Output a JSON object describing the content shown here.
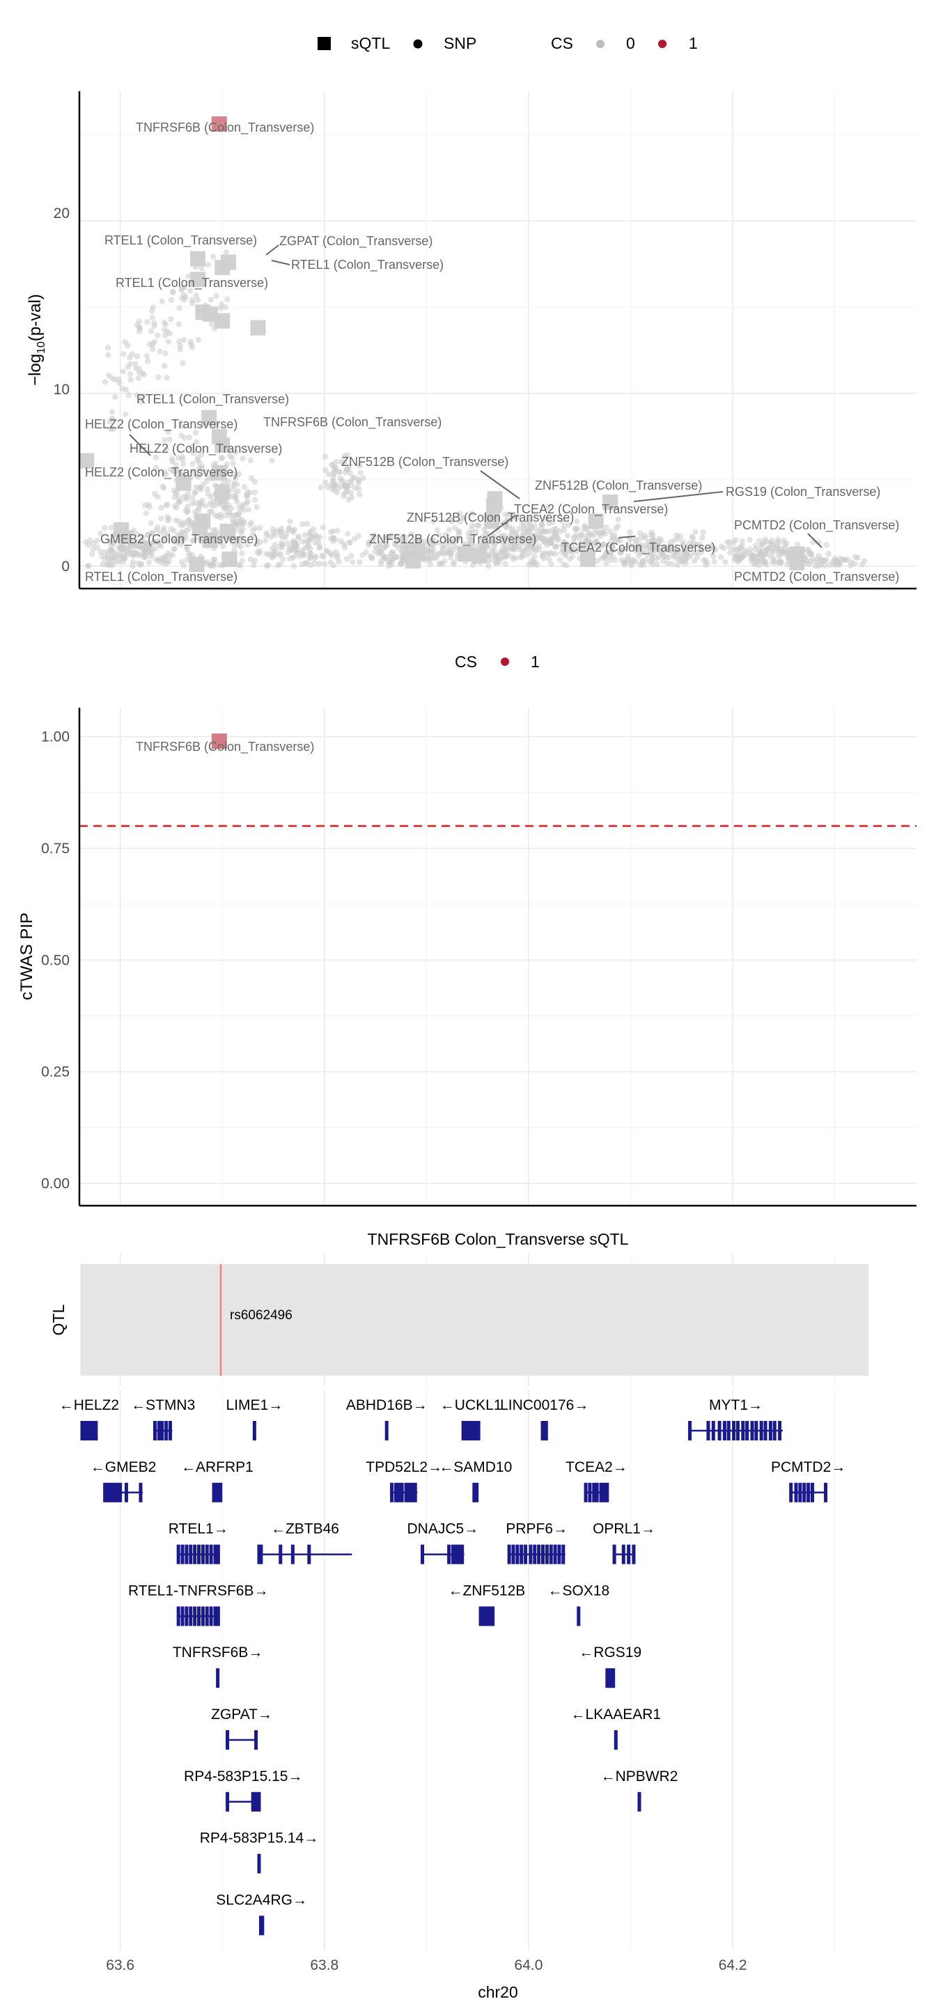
{
  "colors": {
    "sqtl_point": "#cfcfcf",
    "snp_point": "#cccccc",
    "cs0": "#bdbdbd",
    "cs1": "#b2182b",
    "threshold_line": "#e31a1c",
    "gene": "#1a1a8c",
    "qtl_line": "#f08080",
    "qtl_band": "#e5e5e5",
    "label_text": "#666666"
  },
  "legend1": {
    "shape_items": [
      "sQTL",
      "SNP"
    ],
    "cs_title": "CS",
    "cs_items": [
      "0",
      "1"
    ]
  },
  "legend2": {
    "cs_title": "CS",
    "cs_items": [
      "1"
    ]
  },
  "axis": {
    "x_label": "chr20",
    "x_ticks": [
      "63.6",
      "63.8",
      "64.0",
      "64.2"
    ]
  },
  "chart_data": [
    {
      "type": "scatter",
      "panel": "association",
      "ylabel": "−log10(p-val)",
      "xlim": [
        63.56,
        64.38
      ],
      "ylim": [
        -1.3,
        27.5
      ],
      "y_ticks": [
        "0",
        "10",
        "20"
      ],
      "grid": true,
      "legend_position": "top",
      "sqtl_points": [
        {
          "x": 63.697,
          "y": 25.6,
          "cs": "1",
          "label": "TNFRSF6B (Colon_Transverse)"
        },
        {
          "x": 63.676,
          "y": 17.8,
          "cs": "0",
          "label": "RTEL1 (Colon_Transverse)"
        },
        {
          "x": 63.706,
          "y": 17.6,
          "cs": "0",
          "label": "ZGPAT (Colon_Transverse)"
        },
        {
          "x": 63.7,
          "y": 17.3,
          "cs": "0",
          "label": "RTEL1 (Colon_Transverse)"
        },
        {
          "x": 63.676,
          "y": 16.6,
          "cs": "0",
          "label": "RTEL1 (Colon_Transverse)"
        },
        {
          "x": 63.681,
          "y": 14.7,
          "cs": "0",
          "label": ""
        },
        {
          "x": 63.688,
          "y": 14.6,
          "cs": "0",
          "label": ""
        },
        {
          "x": 63.7,
          "y": 14.2,
          "cs": "0",
          "label": ""
        },
        {
          "x": 63.735,
          "y": 13.8,
          "cs": "0",
          "label": ""
        },
        {
          "x": 63.687,
          "y": 8.6,
          "cs": "0",
          "label": "RTEL1 (Colon_Transverse)"
        },
        {
          "x": 63.697,
          "y": 7.5,
          "cs": "0",
          "label": "TNFRSF6B (Colon_Transverse)"
        },
        {
          "x": 63.7,
          "y": 7.0,
          "cs": "0",
          "label": "HELZ2 (Colon_Transverse)"
        },
        {
          "x": 63.567,
          "y": 6.1,
          "cs": "0",
          "label": "HELZ2 (Colon_Transverse)"
        },
        {
          "x": 63.697,
          "y": 5.4,
          "cs": "0",
          "label": "HELZ2 (Colon_Transverse)"
        },
        {
          "x": 63.662,
          "y": 4.8,
          "cs": "0",
          "label": ""
        },
        {
          "x": 63.7,
          "y": 4.3,
          "cs": "0",
          "label": ""
        },
        {
          "x": 63.967,
          "y": 3.9,
          "cs": "0",
          "label": "ZNF512B (Colon_Transverse)"
        },
        {
          "x": 63.966,
          "y": 3.5,
          "cs": "0",
          "label": "ZNF512B (Colon_Transverse)"
        },
        {
          "x": 64.08,
          "y": 3.7,
          "cs": "0",
          "label": "RGS19 (Colon_Transverse)"
        },
        {
          "x": 63.964,
          "y": 2.6,
          "cs": "0",
          "label": "ZNF512B (Colon_Transverse)"
        },
        {
          "x": 64.066,
          "y": 2.6,
          "cs": "0",
          "label": "TCEA2 (Colon_Transverse)"
        },
        {
          "x": 63.681,
          "y": 2.6,
          "cs": "0",
          "label": "GMEB2 (Colon_Transverse)"
        },
        {
          "x": 63.678,
          "y": 2.2,
          "cs": "0",
          "label": ""
        },
        {
          "x": 63.601,
          "y": 2.1,
          "cs": "0",
          "label": ""
        },
        {
          "x": 63.705,
          "y": 2.0,
          "cs": "0",
          "label": ""
        },
        {
          "x": 63.688,
          "y": 1.5,
          "cs": "0",
          "label": ""
        },
        {
          "x": 63.891,
          "y": 0.9,
          "cs": "0",
          "label": "ZNF512B (Colon_Transverse)"
        },
        {
          "x": 63.938,
          "y": 0.7,
          "cs": "0",
          "label": ""
        },
        {
          "x": 63.952,
          "y": 0.6,
          "cs": "0",
          "label": ""
        },
        {
          "x": 64.058,
          "y": 0.4,
          "cs": "0",
          "label": "TCEA2 (Colon_Transverse)"
        },
        {
          "x": 63.887,
          "y": 0.3,
          "cs": "0",
          "label": ""
        },
        {
          "x": 64.263,
          "y": 0.7,
          "cs": "0",
          "label": "PCMTD2 (Colon_Transverse)"
        },
        {
          "x": 64.263,
          "y": 0.2,
          "cs": "0",
          "label": "PCMTD2 (Colon_Transverse)"
        },
        {
          "x": 63.707,
          "y": 0.4,
          "cs": "0",
          "label": ""
        },
        {
          "x": 63.675,
          "y": 0.1,
          "cs": "0",
          "label": "RTEL1 (Colon_Transverse)"
        }
      ]
    },
    {
      "type": "scatter",
      "panel": "pip",
      "ylabel": "cTWAS PIP",
      "xlim": [
        63.56,
        64.38
      ],
      "ylim": [
        -0.05,
        1.065
      ],
      "y_ticks": [
        "0.00",
        "0.25",
        "0.50",
        "0.75",
        "1.00"
      ],
      "threshold": 0.8,
      "grid": true,
      "legend_position": "top",
      "points": [
        {
          "x": 63.697,
          "y": 0.99,
          "cs": "1",
          "label": "TNFRSF6B (Colon_Transverse)"
        }
      ]
    },
    {
      "type": "track",
      "panel": "qtl",
      "title": "TNFRSF6B Colon_Transverse sQTL",
      "ylabel": "QTL",
      "range": [
        63.561,
        64.333
      ],
      "snp": {
        "x": 63.6985,
        "label": "rs6062496"
      }
    },
    {
      "type": "gene_track",
      "panel": "genes",
      "genes": [
        {
          "name": "←HELZ2",
          "row": 0,
          "start": 63.561,
          "end": 63.578,
          "exons": []
        },
        {
          "name": "←STMN3",
          "row": 0,
          "start": 63.633,
          "end": 63.651,
          "exons": [
            63.634,
            63.638,
            63.641,
            63.645,
            63.649
          ]
        },
        {
          "name": "LIME1→",
          "row": 0,
          "start": 63.73,
          "end": 63.733,
          "exons": []
        },
        {
          "name": "ABHD16B→",
          "row": 0,
          "start": 63.86,
          "end": 63.862,
          "exons": []
        },
        {
          "name": "←UCKL1",
          "row": 0,
          "start": 63.935,
          "end": 63.952,
          "exons": [
            63.936,
            63.939,
            63.942,
            63.945,
            63.948,
            63.951
          ]
        },
        {
          "name": "LINC00176→",
          "row": 0,
          "start": 64.012,
          "end": 64.019,
          "exons": []
        },
        {
          "name": "MYT1→",
          "row": 0,
          "start": 64.157,
          "end": 64.249,
          "exons": [
            64.158,
            64.176,
            64.181,
            64.187,
            64.192,
            64.196,
            64.201,
            64.205,
            64.21,
            64.214,
            64.219,
            64.223,
            64.228,
            64.232,
            64.237,
            64.241,
            64.246
          ]
        },
        {
          "name": "←GMEB2",
          "row": 1,
          "start": 63.584,
          "end": 63.622,
          "exons": [
            63.585,
            63.588,
            63.591,
            63.594,
            63.597,
            63.6,
            63.606,
            63.62
          ]
        },
        {
          "name": "←ARFRP1",
          "row": 1,
          "start": 63.69,
          "end": 63.7,
          "exons": []
        },
        {
          "name": "TPD52L2→",
          "row": 1,
          "start": 63.865,
          "end": 63.891,
          "exons": [
            63.866,
            63.87,
            63.873,
            63.876,
            63.88,
            63.883,
            63.886,
            63.889
          ]
        },
        {
          "name": "←SAMD10",
          "row": 1,
          "start": 63.945,
          "end": 63.951,
          "exons": []
        },
        {
          "name": "TCEA2→",
          "row": 1,
          "start": 64.055,
          "end": 64.078,
          "exons": [
            64.056,
            64.06,
            64.064,
            64.067,
            64.071,
            64.074,
            64.077
          ]
        },
        {
          "name": "PCMTD2→",
          "row": 1,
          "start": 64.256,
          "end": 64.292,
          "exons": [
            64.257,
            64.262,
            64.266,
            64.27,
            64.274,
            64.278,
            64.291
          ]
        },
        {
          "name": "RTEL1→",
          "row": 2,
          "start": 63.656,
          "end": 63.697,
          "exons": [
            63.657,
            63.661,
            63.665,
            63.669,
            63.673,
            63.677,
            63.681,
            63.685,
            63.689,
            63.693,
            63.696
          ]
        },
        {
          "name": "←ZBTB46",
          "row": 2,
          "start": 63.735,
          "end": 63.827,
          "exons": [
            63.736,
            63.738,
            63.757,
            63.769,
            63.785
          ]
        },
        {
          "name": "DNAJC5→",
          "row": 2,
          "start": 63.895,
          "end": 63.937,
          "exons": [
            63.896,
            63.922,
            63.926,
            63.929,
            63.932,
            63.935
          ]
        },
        {
          "name": "PRPF6→",
          "row": 2,
          "start": 63.98,
          "end": 64.036,
          "exons": [
            63.981,
            63.985,
            63.989,
            63.993,
            63.997,
            64.002,
            64.006,
            64.01,
            64.014,
            64.018,
            64.022,
            64.026,
            64.03,
            64.034
          ]
        },
        {
          "name": "OPRL1→",
          "row": 2,
          "start": 64.083,
          "end": 64.104,
          "exons": [
            64.084,
            64.093,
            64.098,
            64.103
          ]
        },
        {
          "name": "RTEL1-TNFRSF6B→",
          "row": 3,
          "start": 63.656,
          "end": 63.697,
          "exons": [
            63.657,
            63.661,
            63.665,
            63.669,
            63.673,
            63.677,
            63.681,
            63.685,
            63.689,
            63.693,
            63.696
          ]
        },
        {
          "name": "←ZNF512B",
          "row": 3,
          "start": 63.952,
          "end": 63.966,
          "exons": [
            63.953,
            63.956,
            63.959,
            63.962,
            63.965
          ]
        },
        {
          "name": "←SOX18",
          "row": 3,
          "start": 64.048,
          "end": 64.05,
          "exons": []
        },
        {
          "name": "TNFRSF6B→",
          "row": 4,
          "start": 63.694,
          "end": 63.697,
          "exons": []
        },
        {
          "name": "←RGS19",
          "row": 4,
          "start": 64.076,
          "end": 64.084,
          "exons": [
            64.077,
            64.079,
            64.081,
            64.083
          ]
        },
        {
          "name": "ZGPAT→",
          "row": 5,
          "start": 63.704,
          "end": 63.734,
          "exons": [
            63.705,
            63.733
          ]
        },
        {
          "name": "←LKAAEAR1",
          "row": 5,
          "start": 64.084,
          "end": 64.087,
          "exons": []
        },
        {
          "name": "RP4-583P15.15→",
          "row": 6,
          "start": 63.704,
          "end": 63.737,
          "exons": [
            63.705,
            63.73,
            63.733,
            63.736
          ]
        },
        {
          "name": "←NPBWR2",
          "row": 6,
          "start": 64.107,
          "end": 64.11,
          "exons": []
        },
        {
          "name": "RP4-583P15.14→",
          "row": 7,
          "start": 63.734,
          "end": 63.738,
          "exons": []
        },
        {
          "name": "SLC2A4RG→",
          "row": 8,
          "start": 63.736,
          "end": 63.741,
          "exons": []
        }
      ]
    }
  ]
}
